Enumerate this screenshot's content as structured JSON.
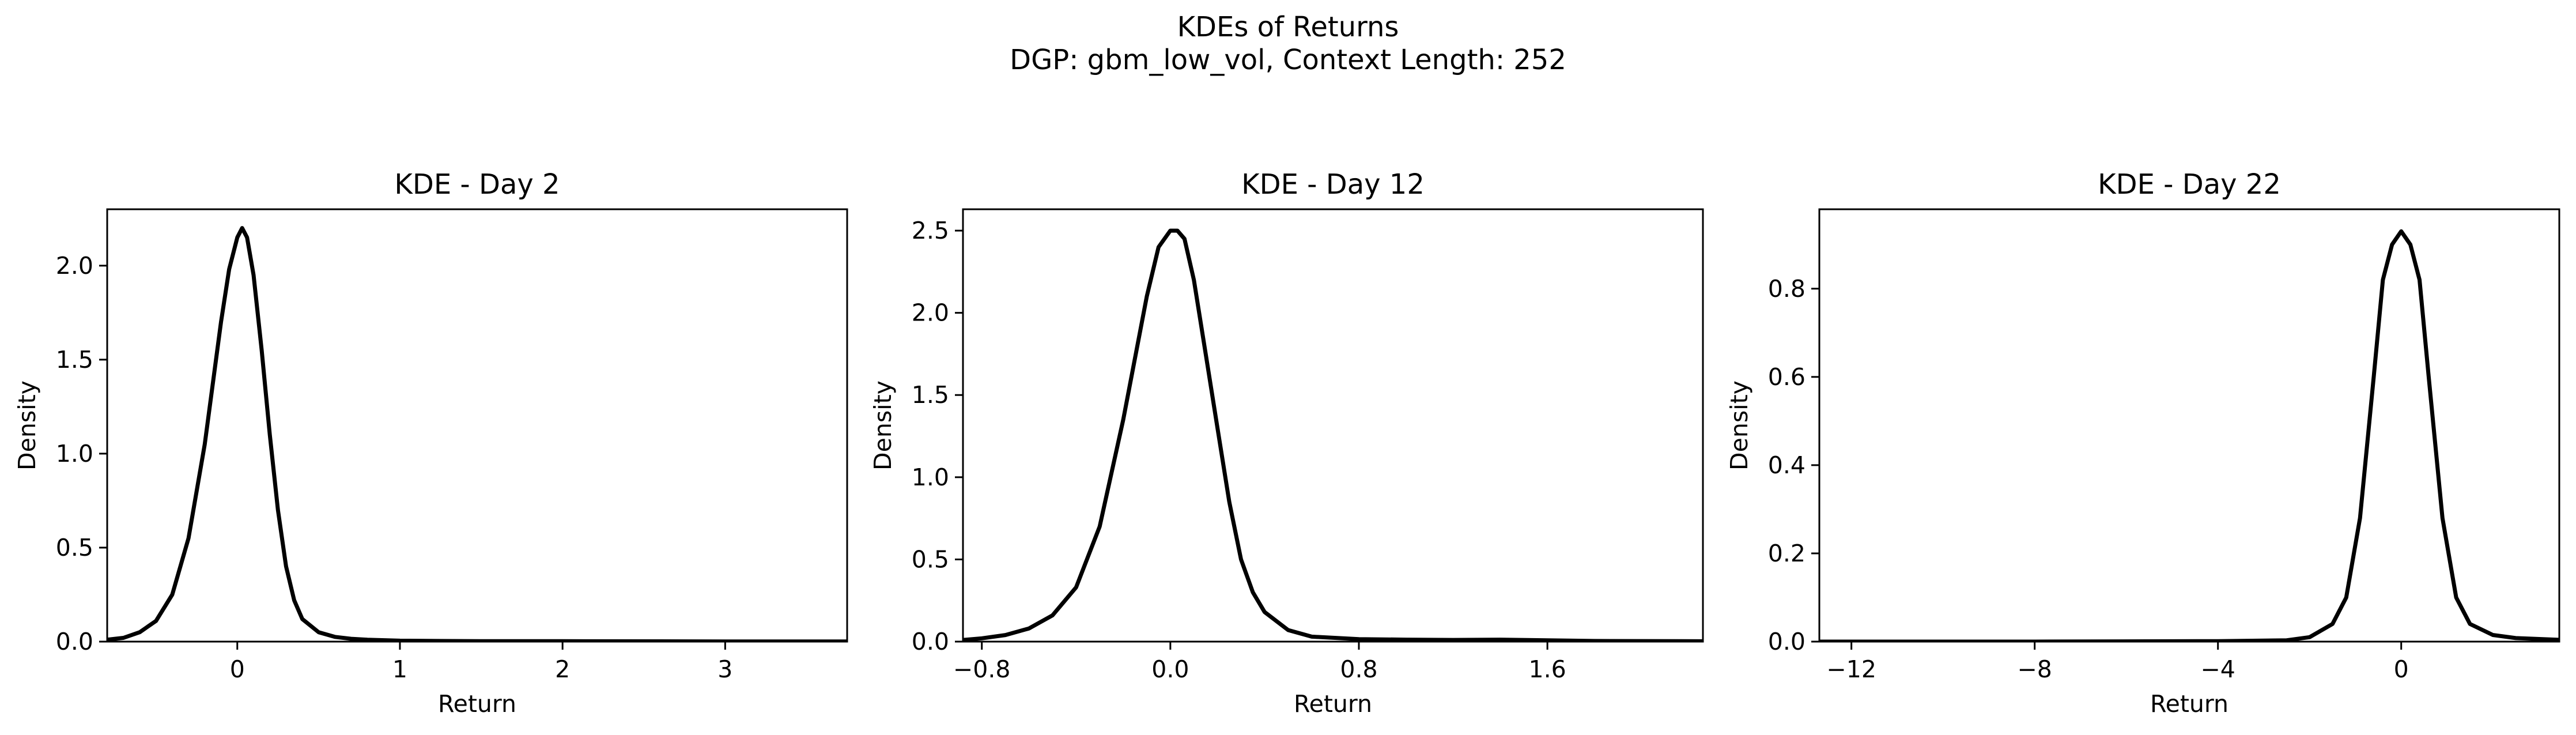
{
  "figure": {
    "title_line1": "KDEs of Returns",
    "title_line2": "DGP: gbm_low_vol, Context Length: 252"
  },
  "chart_data": [
    {
      "type": "line",
      "title": "KDE - Day 2",
      "xlabel": "Return",
      "ylabel": "Density",
      "xlim": [
        -0.8,
        3.75
      ],
      "ylim": [
        0,
        2.3
      ],
      "xticks": [
        0,
        1,
        2,
        3
      ],
      "xtick_labels": [
        "0",
        "1",
        "2",
        "3"
      ],
      "yticks": [
        0.0,
        0.5,
        1.0,
        1.5,
        2.0
      ],
      "ytick_labels": [
        "0.0",
        "0.5",
        "1.0",
        "1.5",
        "2.0"
      ],
      "line_color": "#000000",
      "series": [
        {
          "x": [
            -0.8,
            -0.7,
            -0.6,
            -0.5,
            -0.4,
            -0.3,
            -0.2,
            -0.1,
            -0.05,
            0.0,
            0.03,
            0.06,
            0.1,
            0.15,
            0.2,
            0.25,
            0.3,
            0.35,
            0.4,
            0.5,
            0.6,
            0.7,
            0.8,
            1.0,
            1.5,
            2.0,
            3.0,
            3.75
          ],
          "y": [
            0.01,
            0.02,
            0.05,
            0.11,
            0.25,
            0.55,
            1.05,
            1.7,
            1.98,
            2.15,
            2.2,
            2.15,
            1.95,
            1.55,
            1.1,
            0.7,
            0.4,
            0.22,
            0.12,
            0.05,
            0.025,
            0.015,
            0.01,
            0.005,
            0.002,
            0.002,
            0.001,
            0.001
          ]
        }
      ]
    },
    {
      "type": "line",
      "title": "KDE - Day 12",
      "xlabel": "Return",
      "ylabel": "Density",
      "xlim": [
        -0.88,
        2.26
      ],
      "ylim": [
        0,
        2.63
      ],
      "xticks": [
        -0.8,
        0.0,
        0.8,
        1.6
      ],
      "xtick_labels": [
        "−0.8",
        "0.0",
        "0.8",
        "1.6"
      ],
      "yticks": [
        0.0,
        0.5,
        1.0,
        1.5,
        2.0,
        2.5
      ],
      "ytick_labels": [
        "0.0",
        "0.5",
        "1.0",
        "1.5",
        "2.0",
        "2.5"
      ],
      "line_color": "#000000",
      "series": [
        {
          "x": [
            -0.88,
            -0.8,
            -0.7,
            -0.6,
            -0.5,
            -0.4,
            -0.3,
            -0.2,
            -0.1,
            -0.05,
            0.0,
            0.03,
            0.06,
            0.1,
            0.15,
            0.2,
            0.25,
            0.3,
            0.35,
            0.4,
            0.5,
            0.6,
            0.8,
            1.0,
            1.2,
            1.4,
            1.6,
            1.8,
            2.26
          ],
          "y": [
            0.01,
            0.02,
            0.04,
            0.08,
            0.16,
            0.33,
            0.7,
            1.35,
            2.1,
            2.4,
            2.5,
            2.5,
            2.45,
            2.2,
            1.75,
            1.3,
            0.85,
            0.5,
            0.3,
            0.18,
            0.07,
            0.03,
            0.015,
            0.012,
            0.01,
            0.012,
            0.008,
            0.004,
            0.002
          ]
        }
      ]
    },
    {
      "type": "line",
      "title": "KDE - Day 22",
      "xlabel": "Return",
      "ylabel": "Density",
      "xlim": [
        -12.7,
        3.45
      ],
      "ylim": [
        0,
        0.98
      ],
      "xticks": [
        -12,
        -8,
        -4,
        0
      ],
      "xtick_labels": [
        "−12",
        "−8",
        "−4",
        "0"
      ],
      "yticks": [
        0.0,
        0.2,
        0.4,
        0.6,
        0.8
      ],
      "ytick_labels": [
        "0.0",
        "0.2",
        "0.4",
        "0.6",
        "0.8"
      ],
      "line_color": "#000000",
      "series": [
        {
          "x": [
            -12.7,
            -8.0,
            -4.0,
            -2.5,
            -2.0,
            -1.5,
            -1.2,
            -0.9,
            -0.6,
            -0.4,
            -0.2,
            0.0,
            0.2,
            0.4,
            0.6,
            0.9,
            1.2,
            1.5,
            2.0,
            2.5,
            3.45
          ],
          "y": [
            0.0,
            0.0,
            0.001,
            0.003,
            0.01,
            0.04,
            0.1,
            0.28,
            0.6,
            0.82,
            0.9,
            0.93,
            0.9,
            0.82,
            0.6,
            0.28,
            0.1,
            0.04,
            0.015,
            0.008,
            0.004
          ]
        }
      ]
    }
  ]
}
